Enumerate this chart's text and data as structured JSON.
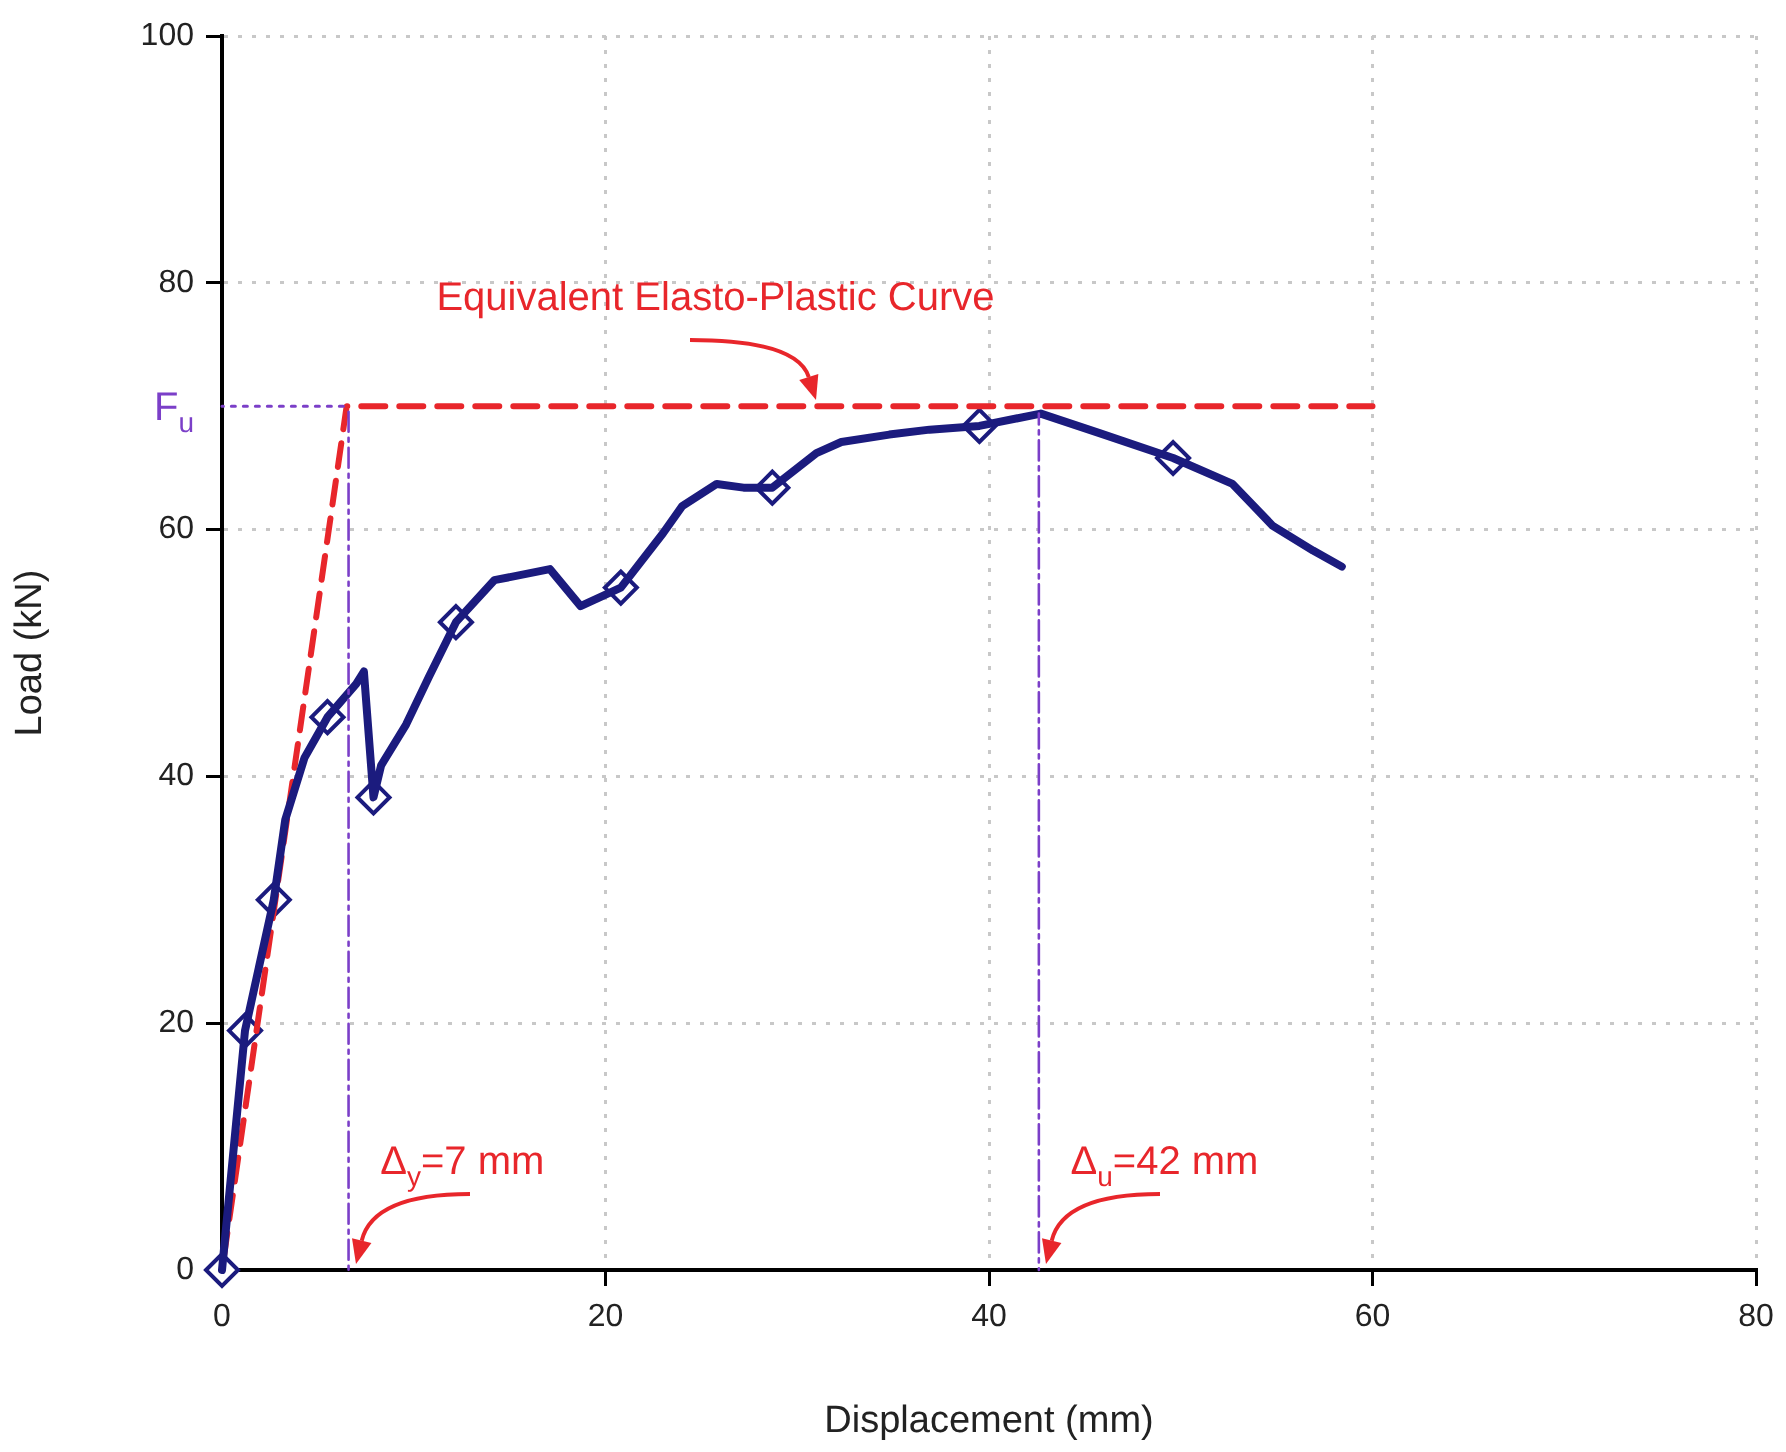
{
  "chart_data": {
    "type": "line",
    "xlabel": "Displacement (mm)",
    "ylabel": "Load (kN)",
    "xlim": [
      0,
      80
    ],
    "xticks": [
      0,
      20,
      40,
      60,
      80
    ],
    "ylim": [
      0,
      100
    ],
    "yticks": [
      0,
      20,
      40,
      60,
      80,
      100
    ],
    "grid": true,
    "legend": false,
    "series": [
      {
        "color": "#7b3fc8",
        "line_style": "dotted",
        "marker": "none",
        "x": [
          0,
          6.5
        ],
        "values": [
          70,
          70
        ]
      },
      {
        "color": "#7b3fc8",
        "line_style": "dashed",
        "marker": "none",
        "x": [
          6.6,
          6.6
        ],
        "values": [
          0,
          70
        ]
      },
      {
        "color": "#7b3fc8",
        "line_style": "dashed",
        "marker": "none",
        "x": [
          42.6,
          42.6
        ],
        "values": [
          0,
          69.4
        ]
      },
      {
        "color": "#1b1b7e",
        "line_style": "solid",
        "marker": "none",
        "x": [
          0,
          1.2,
          2.7,
          3.3,
          4.3,
          5.5,
          7.0,
          7.4,
          7.9,
          8.3,
          9.6,
          10.8,
          12.2,
          14.2,
          17.1,
          18.7,
          20.8,
          23,
          24.0,
          25.8,
          27.2,
          28.7,
          31.0,
          32.3,
          34.8,
          36.9,
          39.5,
          42.7,
          45.8,
          49.6,
          52.7,
          54.8,
          56.9,
          58.4
        ],
        "values": [
          0,
          19.4,
          30,
          36.5,
          41.5,
          44.8,
          47.5,
          48.5,
          38.3,
          40.9,
          44.2,
          48.1,
          52.5,
          55.9,
          56.8,
          53.8,
          55.3,
          59.7,
          61.9,
          63.7,
          63.4,
          63.4,
          66.2,
          67.1,
          67.7,
          68.1,
          68.4,
          69.4,
          67.8,
          65.8,
          63.7,
          60.3,
          58.3,
          57.0
        ]
      },
      {
        "color": "#e8262b",
        "line_style": "dashed",
        "marker": "none",
        "x": [
          0,
          6.5,
          60
        ],
        "values": [
          0,
          70,
          70
        ]
      },
      {
        "type": "scatter",
        "color": "#1b1b7e",
        "marker": "diamond",
        "x": [
          0,
          1.2,
          2.7,
          5.5,
          7.9,
          12.2,
          20.8,
          28.7,
          39.5,
          49.6
        ],
        "values": [
          0,
          19.4,
          30,
          44.8,
          38.3,
          52.5,
          55.3,
          63.4,
          68.4,
          65.8
        ]
      }
    ],
    "annotations": [
      {
        "text": "F$_{u}$",
        "x": 0,
        "y": 70
      },
      {
        "text": "Equivalent Elasto-Plastic Curve",
        "x": 31,
        "y": 70
      },
      {
        "text": "Δ$_{y}$=7 mm",
        "x": 7,
        "y": 0
      },
      {
        "text": "Δ$_{u}$=42 mm",
        "x": 43,
        "y": 0
      }
    ]
  }
}
